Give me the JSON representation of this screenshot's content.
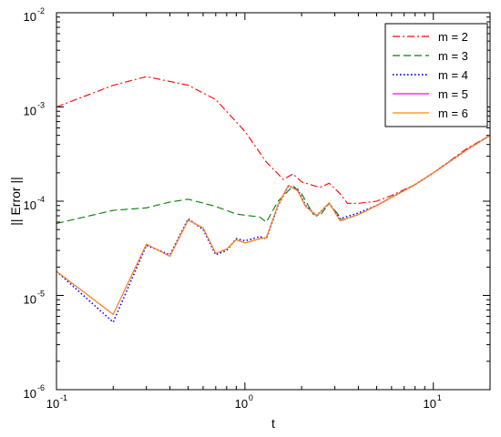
{
  "chart_data": {
    "type": "line",
    "title": "",
    "xlabel": "t",
    "ylabel": "|| Error ||",
    "xscale": "log",
    "yscale": "log",
    "xlim": [
      0.1,
      20
    ],
    "ylim": [
      1e-06,
      0.01
    ],
    "grid": false,
    "legend_position": "top-right",
    "x_ticks": [
      {
        "base": "10",
        "exp": "-1",
        "value": 0.1
      },
      {
        "base": "10",
        "exp": "0",
        "value": 1
      },
      {
        "base": "10",
        "exp": "1",
        "value": 10
      }
    ],
    "y_ticks": [
      {
        "base": "10",
        "exp": "-6",
        "value": 1e-06
      },
      {
        "base": "10",
        "exp": "-5",
        "value": 1e-05
      },
      {
        "base": "10",
        "exp": "-4",
        "value": 0.0001
      },
      {
        "base": "10",
        "exp": "-3",
        "value": 0.001
      },
      {
        "base": "10",
        "exp": "-2",
        "value": 0.01
      }
    ],
    "series": [
      {
        "name": "m = 2",
        "color": "#ff0000",
        "dash": "dash-dot",
        "points": [
          [
            0.1,
            0.001
          ],
          [
            0.2,
            0.0017
          ],
          [
            0.3,
            0.0021
          ],
          [
            0.5,
            0.0017
          ],
          [
            0.7,
            0.0012
          ],
          [
            1.0,
            0.00055
          ],
          [
            1.3,
            0.00026
          ],
          [
            1.6,
            0.00017
          ],
          [
            1.8,
            0.000195
          ],
          [
            2.0,
            0.00016
          ],
          [
            2.5,
            0.00014
          ],
          [
            2.8,
            0.000155
          ],
          [
            3.2,
            0.00012
          ],
          [
            3.5,
            9.5e-05
          ],
          [
            4.0,
            9.5e-05
          ],
          [
            5.0,
            0.0001
          ],
          [
            6.0,
            0.000115
          ],
          [
            8.0,
            0.00015
          ],
          [
            10,
            0.0002
          ],
          [
            15,
            0.00036
          ],
          [
            20,
            0.0005
          ]
        ]
      },
      {
        "name": "m = 3",
        "color": "#008000",
        "dash": "dashed",
        "points": [
          [
            0.1,
            5.8e-05
          ],
          [
            0.2,
            8e-05
          ],
          [
            0.3,
            8.5e-05
          ],
          [
            0.4,
            9.8e-05
          ],
          [
            0.5,
            0.000105
          ],
          [
            0.7,
            8.8e-05
          ],
          [
            0.9,
            7.3e-05
          ],
          [
            1.2,
            6.8e-05
          ],
          [
            1.3,
            6e-05
          ],
          [
            1.5,
            0.0001
          ],
          [
            1.8,
            0.000145
          ],
          [
            2.0,
            0.00012
          ],
          [
            2.3,
            7.3e-05
          ],
          [
            2.5,
            7e-05
          ],
          [
            2.8,
            9.5e-05
          ],
          [
            3.3,
            6.3e-05
          ],
          [
            4.0,
            7.2e-05
          ],
          [
            5.0,
            9e-05
          ],
          [
            6.0,
            0.00011
          ],
          [
            8.0,
            0.00015
          ],
          [
            10,
            0.0002
          ],
          [
            15,
            0.00035
          ],
          [
            20,
            0.0005
          ]
        ]
      },
      {
        "name": "m = 4",
        "color": "#0000ff",
        "dash": "dotted",
        "points": [
          [
            0.1,
            1.8e-05
          ],
          [
            0.2,
            5.2e-06
          ],
          [
            0.3,
            3.4e-05
          ],
          [
            0.4,
            2.7e-05
          ],
          [
            0.5,
            6.5e-05
          ],
          [
            0.6,
            5e-05
          ],
          [
            0.7,
            2.7e-05
          ],
          [
            0.8,
            3e-05
          ],
          [
            0.9,
            4e-05
          ],
          [
            1.0,
            3.8e-05
          ],
          [
            1.2,
            4.2e-05
          ],
          [
            1.3,
            4e-05
          ],
          [
            1.5,
            9e-05
          ],
          [
            1.7,
            0.000145
          ],
          [
            1.9,
            0.000135
          ],
          [
            2.1,
            9e-05
          ],
          [
            2.4,
            7e-05
          ],
          [
            2.8,
            9.5e-05
          ],
          [
            3.2,
            6.5e-05
          ],
          [
            4.0,
            7.5e-05
          ],
          [
            5.0,
            9e-05
          ],
          [
            6.0,
            0.00011
          ],
          [
            8.0,
            0.00015
          ],
          [
            10,
            0.0002
          ],
          [
            15,
            0.00035
          ],
          [
            20,
            0.0005
          ]
        ]
      },
      {
        "name": "m = 5",
        "color": "#ff00ff",
        "dash": "solid",
        "points": [
          [
            0.1,
            1.8e-05
          ],
          [
            0.2,
            6.3e-06
          ],
          [
            0.3,
            3.5e-05
          ],
          [
            0.4,
            2.6e-05
          ],
          [
            0.5,
            6.3e-05
          ],
          [
            0.6,
            5.2e-05
          ],
          [
            0.7,
            2.8e-05
          ],
          [
            0.8,
            3.1e-05
          ],
          [
            0.9,
            3.9e-05
          ],
          [
            1.0,
            3.6e-05
          ],
          [
            1.2,
            4e-05
          ],
          [
            1.3,
            4.1e-05
          ],
          [
            1.5,
            9.2e-05
          ],
          [
            1.7,
            0.000147
          ],
          [
            1.9,
            0.00013
          ],
          [
            2.1,
            8.8e-05
          ],
          [
            2.4,
            7e-05
          ],
          [
            2.8,
            9.6e-05
          ],
          [
            3.2,
            6.2e-05
          ],
          [
            4.0,
            7.2e-05
          ],
          [
            5.0,
            9e-05
          ],
          [
            6.0,
            0.00011
          ],
          [
            8.0,
            0.00015
          ],
          [
            10,
            0.0002
          ],
          [
            15,
            0.00035
          ],
          [
            20,
            0.0005
          ]
        ]
      },
      {
        "name": "m = 6",
        "color": "#ff8c00",
        "dash": "solid",
        "points": [
          [
            0.1,
            1.8e-05
          ],
          [
            0.2,
            6.3e-06
          ],
          [
            0.3,
            3.5e-05
          ],
          [
            0.4,
            2.6e-05
          ],
          [
            0.5,
            6.3e-05
          ],
          [
            0.6,
            5.2e-05
          ],
          [
            0.7,
            2.8e-05
          ],
          [
            0.8,
            3.1e-05
          ],
          [
            0.9,
            3.9e-05
          ],
          [
            1.0,
            3.6e-05
          ],
          [
            1.2,
            4e-05
          ],
          [
            1.3,
            4.1e-05
          ],
          [
            1.5,
            9.2e-05
          ],
          [
            1.7,
            0.000147
          ],
          [
            1.9,
            0.00013
          ],
          [
            2.1,
            8.8e-05
          ],
          [
            2.4,
            7e-05
          ],
          [
            2.8,
            9.6e-05
          ],
          [
            3.2,
            6.2e-05
          ],
          [
            4.0,
            7.2e-05
          ],
          [
            5.0,
            9e-05
          ],
          [
            6.0,
            0.00011
          ],
          [
            8.0,
            0.00015
          ],
          [
            10,
            0.0002
          ],
          [
            15,
            0.00035
          ],
          [
            20,
            0.0005
          ]
        ]
      }
    ]
  }
}
